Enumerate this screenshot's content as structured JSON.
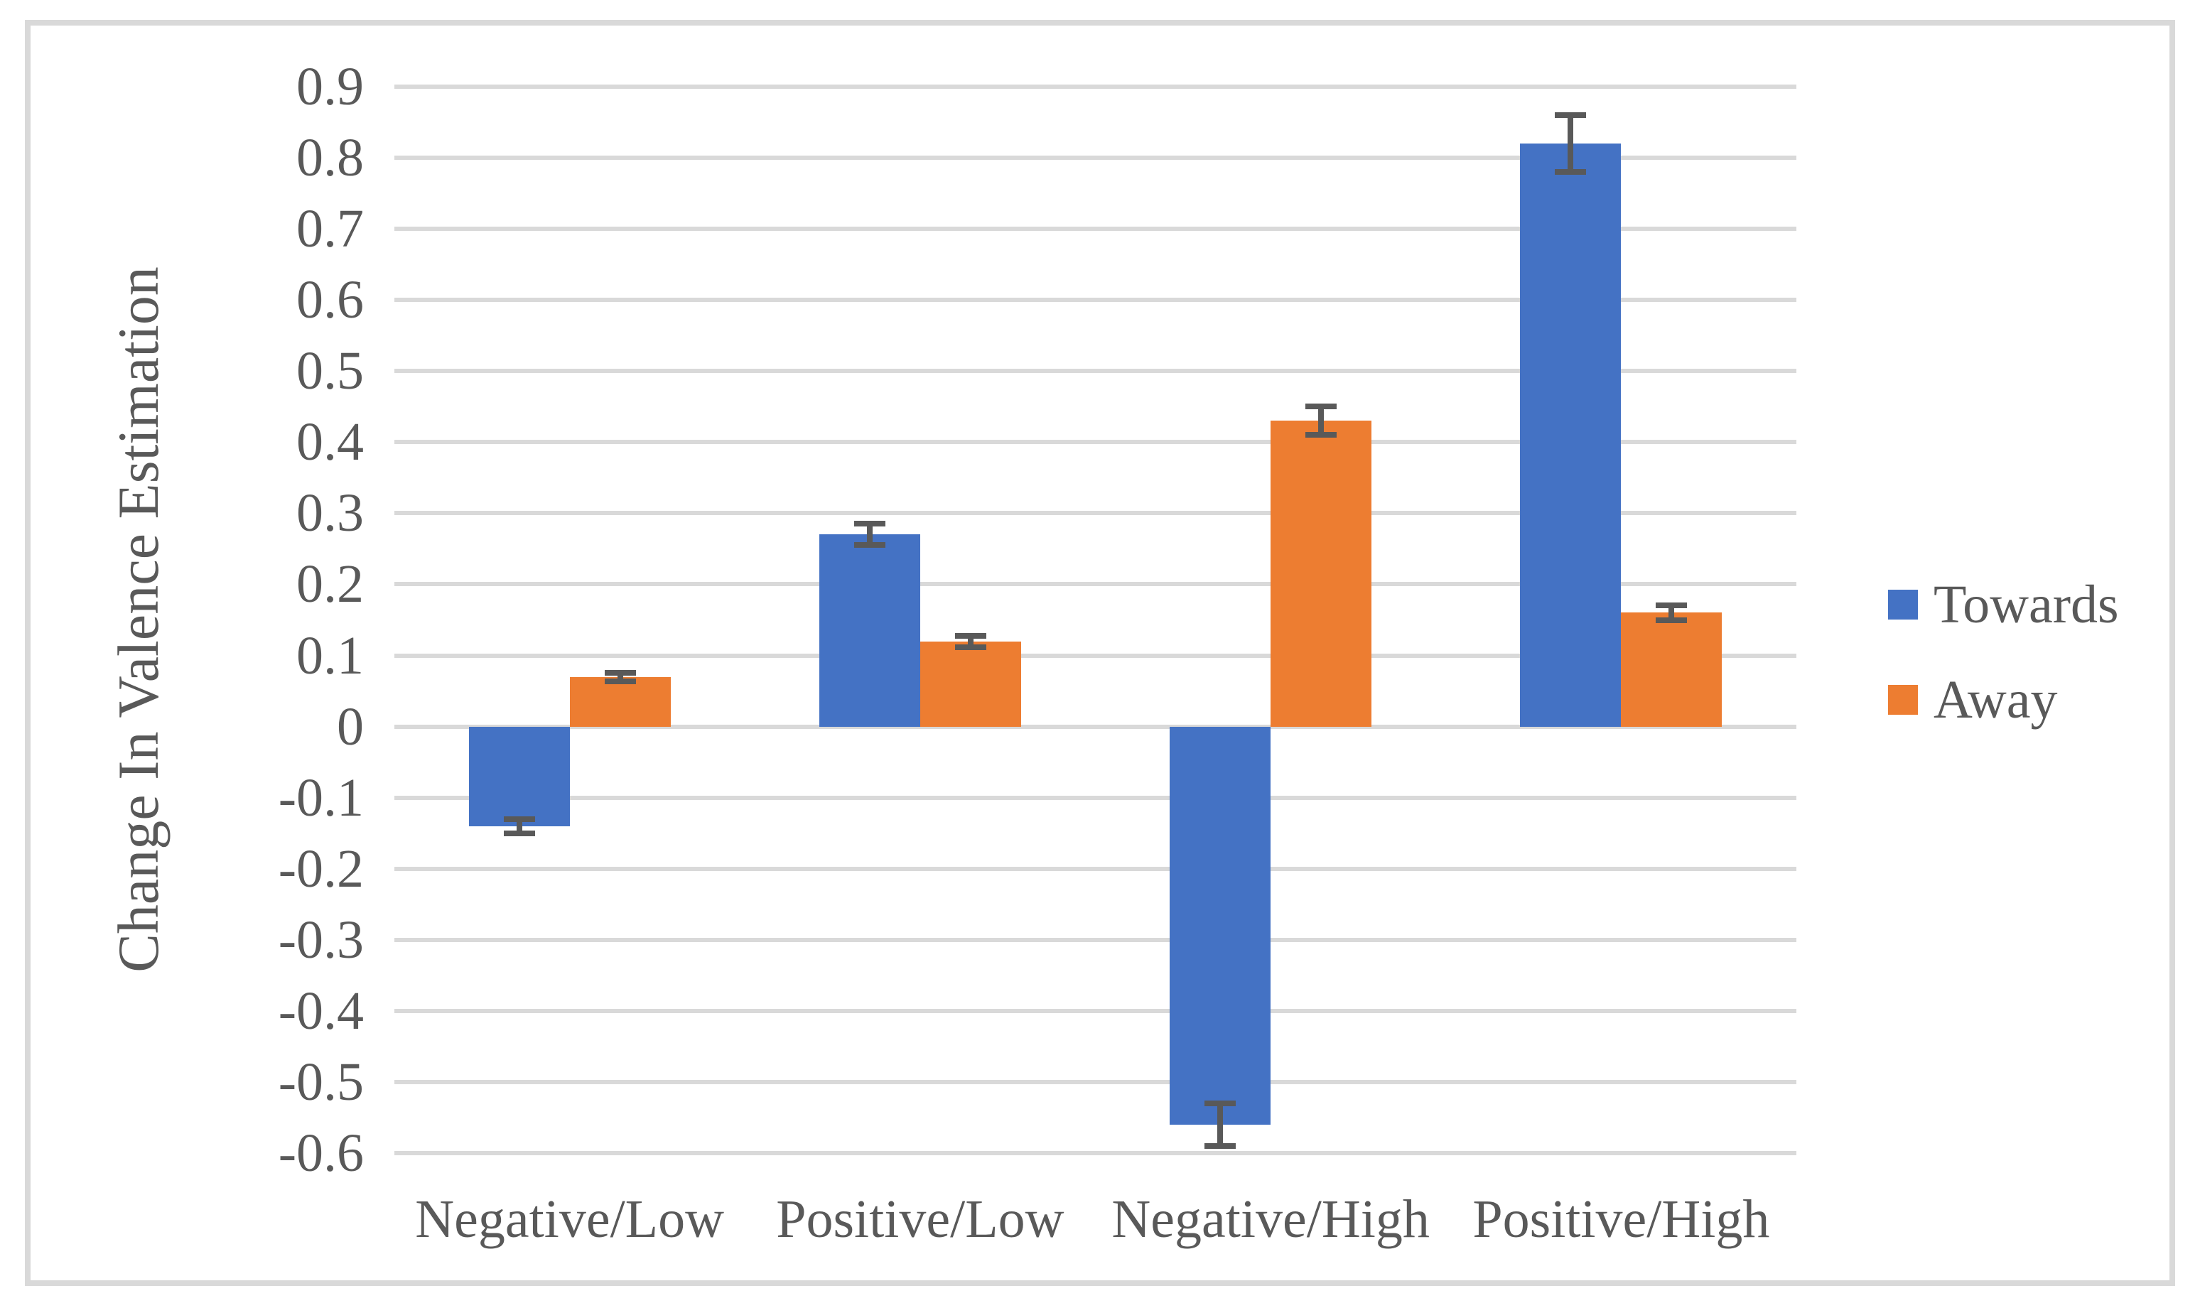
{
  "chart_data": {
    "type": "bar",
    "title": "",
    "xlabel": "",
    "ylabel": "Change In Valence Estimation",
    "categories": [
      "Negative/Low",
      "Positive/Low",
      "Negative/High",
      "Positive/High"
    ],
    "series": [
      {
        "name": "Towards",
        "color": "#4472c4",
        "values": [
          -0.14,
          0.27,
          -0.56,
          0.82
        ],
        "error_bars": [
          0.01,
          0.015,
          0.03,
          0.04
        ]
      },
      {
        "name": "Away",
        "color": "#ed7d31",
        "values": [
          0.07,
          0.12,
          0.43,
          0.16
        ],
        "error_bars": [
          0.006,
          0.008,
          0.02,
          0.01
        ]
      }
    ],
    "ylim": [
      -0.6,
      0.9
    ],
    "ytick_step": 0.1,
    "ytick_labels": [
      "0.9",
      "0.8",
      "0.7",
      "0.6",
      "0.5",
      "0.4",
      "0.3",
      "0.2",
      "0.1",
      "0",
      "-0.1",
      "-0.2",
      "-0.3",
      "-0.4",
      "-0.5",
      "-0.6"
    ],
    "grid": true,
    "legend_position": "right",
    "colors": {
      "gridline": "#d9d9d9",
      "frame_border": "#d9d9d9",
      "axis_text": "#595959",
      "error_bar": "#595959",
      "background": "#ffffff"
    }
  }
}
